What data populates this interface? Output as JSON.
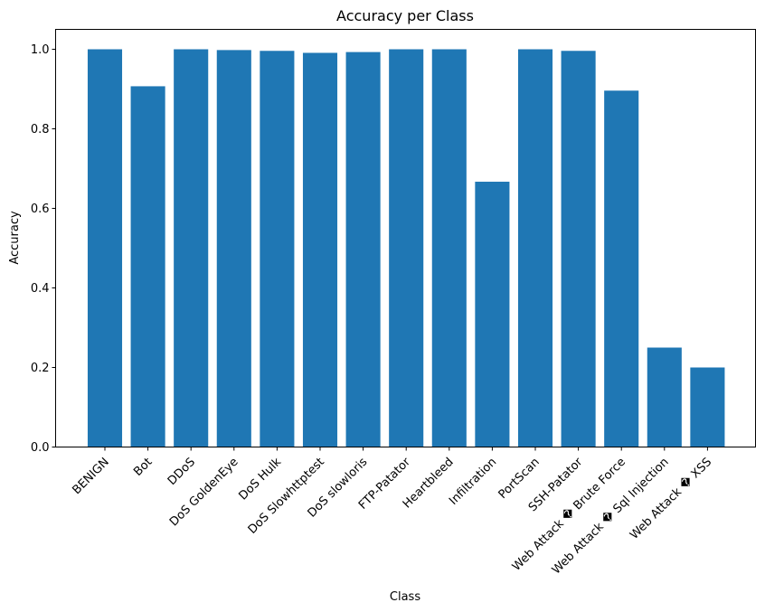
{
  "chart_data": {
    "type": "bar",
    "title": "Accuracy per Class",
    "xlabel": "Class",
    "ylabel": "Accuracy",
    "ylim": [
      0,
      1.05
    ],
    "yticks": [
      "0.0",
      "0.2",
      "0.4",
      "0.6",
      "0.8",
      "1.0"
    ],
    "grid": false,
    "bar_color": "#1f77b4",
    "categories": [
      "BENIGN",
      "Bot",
      "DDoS",
      "DoS GoldenEye",
      "DoS Hulk",
      "DoS Slowhttptest",
      "DoS slowloris",
      "FTP-Patator",
      "Heartbleed",
      "Infiltration",
      "PortScan",
      "SSH-Patator",
      "Web Attack � Brute Force",
      "Web Attack � Sql Injection",
      "Web Attack � XSS"
    ],
    "values": [
      1.0,
      0.907,
      1.0,
      0.998,
      0.996,
      0.991,
      0.993,
      1.0,
      1.0,
      0.667,
      1.0,
      0.996,
      0.896,
      0.25,
      0.2
    ]
  }
}
